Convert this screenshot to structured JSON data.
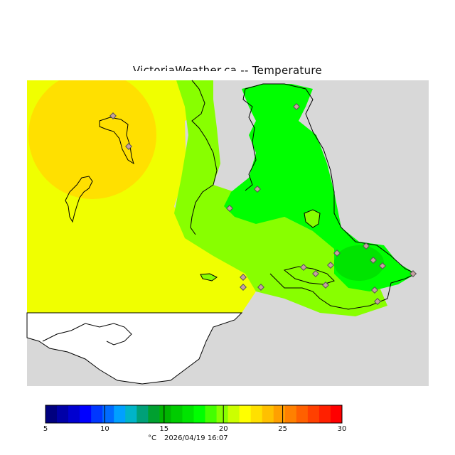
{
  "title": "VictoriaWeather.ca -- Temperature",
  "legend": {
    "min": 5,
    "max": 30,
    "ticks": [
      "5",
      "10",
      "15",
      "20",
      "25",
      "30"
    ],
    "unit_label": "°C",
    "timestamp": "2026/04/19 16:07",
    "colors": [
      "#00007f",
      "#0000a8",
      "#0000d0",
      "#0000ff",
      "#0037ff",
      "#006bff",
      "#00a0ff",
      "#00b4c8",
      "#00a078",
      "#00a030",
      "#00b400",
      "#00cc00",
      "#00e400",
      "#00ff00",
      "#44ff00",
      "#88ff00",
      "#ccff00",
      "#ffff00",
      "#ffe000",
      "#ffc000",
      "#ffa000",
      "#ff8000",
      "#ff6000",
      "#ff4000",
      "#ff2000",
      "#ff0000"
    ]
  },
  "field_colors": {
    "background": "#ffffff",
    "out_of_range": "#d8d8d8",
    "zone_yellow": "#f0ff00",
    "zone_gold": "#ffe000",
    "zone_orange": "#ffc800",
    "zone_lime": "#88ff00",
    "zone_green": "#00ff00",
    "station_marker": "#c8a0a0"
  }
}
